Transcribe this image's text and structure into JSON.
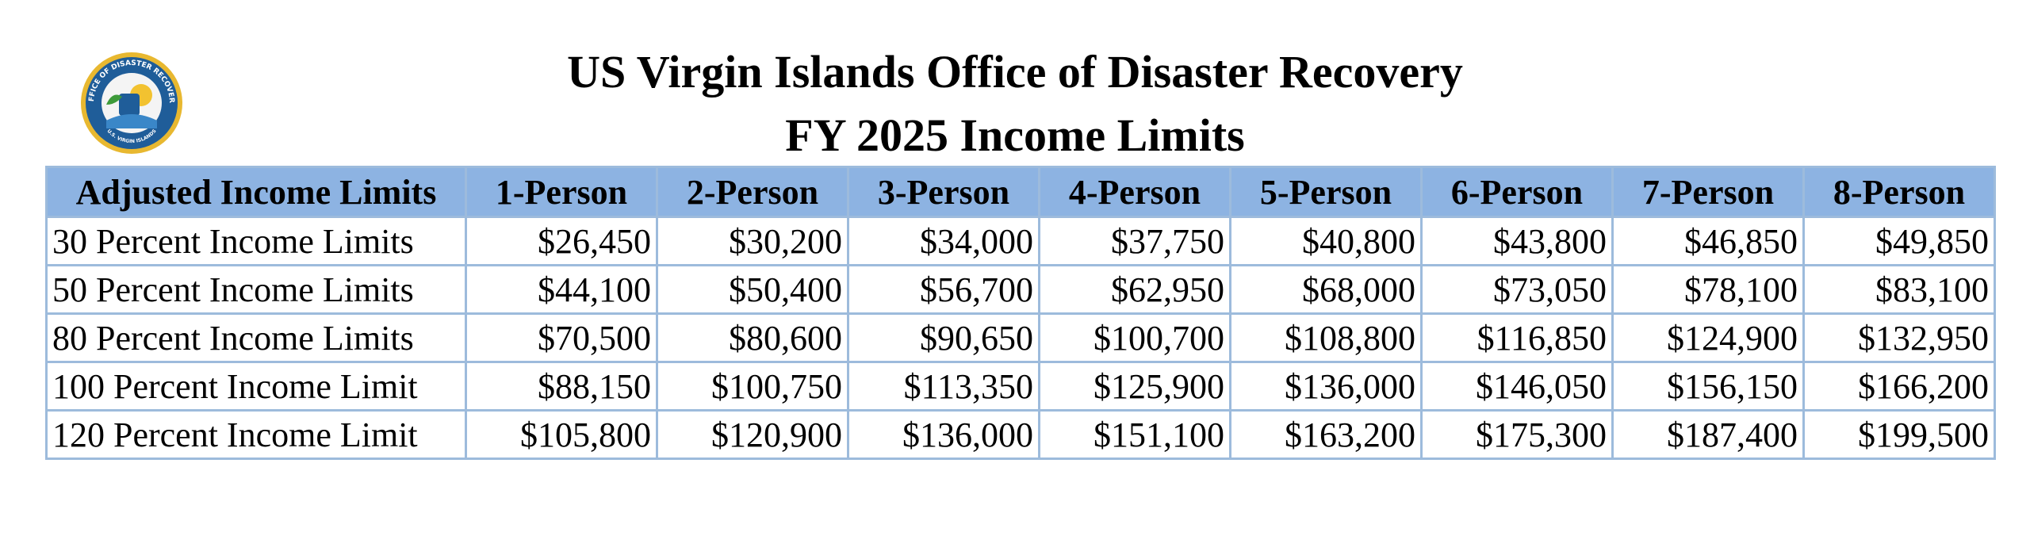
{
  "logo": {
    "ring_text": "OFFICE OF DISASTER RECOVERY",
    "bottom_text": "U.S. VIRGIN ISLANDS"
  },
  "header": {
    "title": "US Virgin Islands Office of Disaster Recovery",
    "subtitle": "FY 2025 Income Limits"
  },
  "table": {
    "columns": [
      "Adjusted Income Limits",
      "1-Person",
      "2-Person",
      "3-Person",
      "4-Person",
      "5-Person",
      "6-Person",
      "7-Person",
      "8-Person"
    ],
    "rows": [
      [
        "30 Percent Income Limits",
        "$26,450",
        "$30,200",
        "$34,000",
        "$37,750",
        "$40,800",
        "$43,800",
        "$46,850",
        "$49,850"
      ],
      [
        "50 Percent Income Limits",
        "$44,100",
        "$50,400",
        "$56,700",
        "$62,950",
        "$68,000",
        "$73,050",
        "$78,100",
        "$83,100"
      ],
      [
        "80 Percent Income Limits",
        "$70,500",
        "$80,600",
        "$90,650",
        "$100,700",
        "$108,800",
        "$116,850",
        "$124,900",
        "$132,950"
      ],
      [
        "100 Percent Income Limit",
        "$88,150",
        "$100,750",
        "$113,350",
        "$125,900",
        "$136,000",
        "$146,050",
        "$156,150",
        "$166,200"
      ],
      [
        "120 Percent Income Limit",
        "$105,800",
        "$120,900",
        "$136,000",
        "$151,100",
        "$163,200",
        "$175,300",
        "$187,400",
        "$199,500"
      ]
    ]
  }
}
